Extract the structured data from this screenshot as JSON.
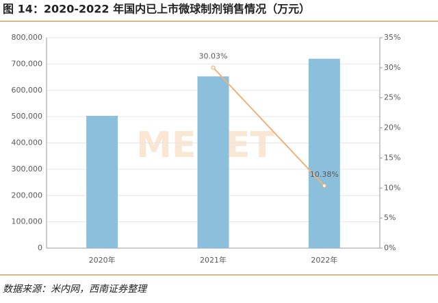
{
  "chart_data": {
    "type": "bar-line",
    "title": "图 14：2020-2022 年国内已上市微球制剂销售情况（万元）",
    "source": "数据来源：米内网，西南证券整理",
    "watermark": "MENET",
    "categories": [
      "2020年",
      "2021年",
      "2022年"
    ],
    "series": [
      {
        "type": "bar",
        "color": "#8bbfdc",
        "values": [
          503000,
          653000,
          720000
        ]
      },
      {
        "type": "line",
        "axis": "y2",
        "color": "#f0b27a",
        "values": [
          null,
          30.03,
          10.38
        ],
        "value_labels": [
          null,
          "30.03%",
          "10.38%"
        ]
      }
    ],
    "ylim": [
      0,
      800000
    ],
    "yticks": [
      0,
      {
        "value": 100000,
        "label": "100,000"
      },
      {
        "value": 200000,
        "label": "200,000"
      },
      {
        "value": 300000,
        "label": "300,000"
      },
      {
        "value": 400000,
        "label": "400,000"
      },
      {
        "value": 500000,
        "label": "500,000"
      },
      {
        "value": 600000,
        "label": "600,000"
      },
      {
        "value": 700000,
        "label": "700,000"
      },
      {
        "value": 800000,
        "label": "800,000"
      }
    ],
    "y2lim": [
      0,
      35
    ],
    "y2ticks": [
      {
        "value": 0,
        "label": "0%"
      },
      {
        "value": 5,
        "label": "5%"
      },
      {
        "value": 10,
        "label": "10%"
      },
      {
        "value": 15,
        "label": "15%"
      },
      {
        "value": 20,
        "label": "20%"
      },
      {
        "value": 25,
        "label": "25%"
      },
      {
        "value": 30,
        "label": "30%"
      },
      {
        "value": 35,
        "label": "35%"
      }
    ],
    "grid": true
  }
}
